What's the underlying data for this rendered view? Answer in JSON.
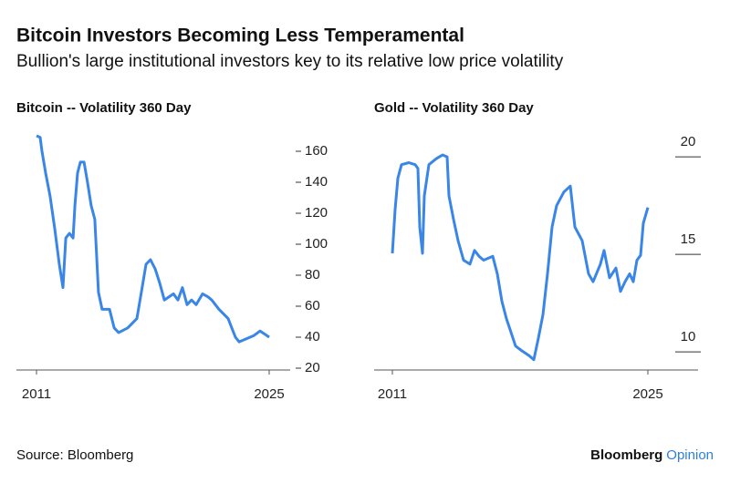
{
  "title": "Bitcoin Investors Becoming Less Temperamental",
  "subtitle": "Bullion's large institutional investors key to its relative low price volatility",
  "footer": {
    "source": "Source: Bloomberg",
    "logo": [
      "Bloomberg",
      "Opinion"
    ]
  },
  "chart_data": [
    {
      "type": "line",
      "title": "Bitcoin -- Volatility 360 Day",
      "color": "#3a86e8",
      "x": [
        2011,
        2011.22,
        2011.33,
        2011.55,
        2011.82,
        2012.1,
        2012.37,
        2012.59,
        2012.76,
        2012.98,
        2013.2,
        2013.31,
        2013.47,
        2013.64,
        2013.86,
        2014.07,
        2014.29,
        2014.51,
        2014.73,
        2014.95,
        2015.39,
        2015.67,
        2015.94,
        2016.49,
        2017.04,
        2017.31,
        2017.59,
        2017.86,
        2018.14,
        2018.41,
        2018.69,
        2019.24,
        2019.51,
        2019.78,
        2020.06,
        2020.33,
        2020.61,
        2020.99,
        2021.32,
        2021.54,
        2021.98,
        2022.53,
        2022.97,
        2023.19,
        2023.63,
        2024.07,
        2024.45,
        2024.73,
        2025
      ],
      "values": [
        170,
        169,
        160,
        146,
        131,
        110,
        87,
        72,
        104,
        107,
        104,
        125,
        146,
        153,
        153,
        140,
        125,
        116,
        69,
        58,
        58,
        46,
        43,
        46,
        52,
        69,
        87,
        90,
        84,
        75,
        64,
        68,
        64,
        72,
        61,
        64,
        61,
        68,
        66,
        64,
        58,
        52,
        40,
        37,
        39,
        41,
        44,
        42,
        40
      ],
      "xlim": [
        2011,
        2025
      ],
      "xticks": [
        2011,
        2025
      ],
      "ylim": [
        20,
        175
      ],
      "yticks": [
        20,
        40,
        60,
        80,
        100,
        120,
        140,
        160
      ]
    },
    {
      "type": "line",
      "title": "Gold -- Volatility 360 Day",
      "color": "#3a86e8",
      "x": [
        2011,
        2011.15,
        2011.3,
        2011.5,
        2011.9,
        2012.25,
        2012.4,
        2012.5,
        2012.65,
        2012.75,
        2013,
        2013.4,
        2013.75,
        2014,
        2014.1,
        2014.35,
        2014.6,
        2014.9,
        2015.25,
        2015.5,
        2015.75,
        2016,
        2016.5,
        2016.75,
        2017,
        2017.25,
        2017.5,
        2017.75,
        2018.1,
        2018.5,
        2018.75,
        2019,
        2019.25,
        2019.5,
        2019.75,
        2020,
        2020.4,
        2020.75,
        2021,
        2021.4,
        2021.75,
        2022,
        2022.4,
        2022.6,
        2022.9,
        2023.25,
        2023.5,
        2023.75,
        2024,
        2024.2,
        2024.4,
        2024.6,
        2024.75,
        2025
      ],
      "values": [
        15.05,
        17.3,
        18.9,
        19.6,
        19.7,
        19.6,
        19.4,
        16.4,
        15.05,
        18,
        19.6,
        19.9,
        20.1,
        20,
        18,
        16.8,
        15.7,
        14.7,
        14.5,
        15.2,
        14.9,
        14.7,
        14.9,
        14,
        12.6,
        11.7,
        11,
        10.3,
        10.05,
        9.8,
        9.6,
        10.7,
        11.9,
        14,
        16.4,
        17.5,
        18.2,
        18.5,
        16.4,
        15.7,
        14,
        13.6,
        14.5,
        15.2,
        13.8,
        14.3,
        13.1,
        13.6,
        14,
        13.6,
        14.7,
        14.95,
        16.6,
        17.4
      ],
      "xlim": [
        2011,
        2025
      ],
      "xticks": [
        2011,
        2025
      ],
      "ylim": [
        9,
        21
      ],
      "yticks": [
        10,
        15,
        20
      ]
    }
  ]
}
